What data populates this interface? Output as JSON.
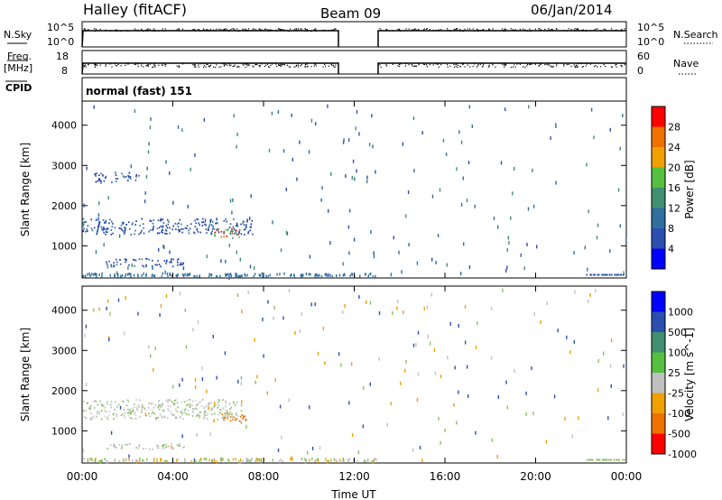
{
  "header": {
    "station": "Halley (fitACF)",
    "beam": "Beam 09",
    "date": "06/Jan/2014"
  },
  "status_panels": {
    "nsky_label": "N.Sky",
    "nsearch_label": "N.Search",
    "nsky_ticks": [
      "10^5",
      "10^0"
    ],
    "nsearch_ticks": [
      "10^5",
      "10^0"
    ],
    "freq_label_top": "Freq.",
    "freq_label_unit": "[MHz]",
    "freq_ticks": [
      "18",
      "8"
    ],
    "nave_label": "Nave",
    "nave_ticks": [
      "60",
      "0"
    ],
    "cpid_label": "CPID",
    "cpid_text": "normal (fast) 151"
  },
  "chart_data": [
    {
      "type": "scatter",
      "name": "power",
      "ylabel": "Slant Range [km]",
      "xlabel": "",
      "xlim": [
        0,
        24
      ],
      "ylim": [
        200,
        4600
      ],
      "yticks": [
        1000,
        2000,
        3000,
        4000
      ],
      "colorbar": {
        "label": "Power [dB]",
        "range": [
          0,
          32
        ],
        "ticks": [
          "4",
          "8",
          "12",
          "16",
          "20",
          "24",
          "28"
        ],
        "colors": [
          "#0000ff",
          "#2a4fb0",
          "#2f6fa0",
          "#3f8f70",
          "#55c040",
          "#f0a000",
          "#f07000",
          "#ff0000"
        ]
      },
      "features": [
        {
          "t0": 0.0,
          "t1": 7.5,
          "r0": 1300,
          "r1": 1700,
          "level": "low"
        },
        {
          "t0": 5.8,
          "t1": 7.0,
          "r0": 1200,
          "r1": 1450,
          "level": "high"
        },
        {
          "t0": 1.0,
          "t1": 4.5,
          "r0": 500,
          "r1": 700,
          "level": "low"
        },
        {
          "t0": 0.5,
          "t1": 2.5,
          "r0": 2600,
          "r1": 2850,
          "level": "low"
        }
      ]
    },
    {
      "type": "scatter",
      "name": "velocity",
      "ylabel": "Slant Range [km]",
      "xlabel": "Time UT",
      "xlim": [
        0,
        24
      ],
      "ylim": [
        200,
        4600
      ],
      "yticks": [
        1000,
        2000,
        3000,
        4000
      ],
      "xticks": [
        "00:00",
        "04:00",
        "08:00",
        "12:00",
        "16:00",
        "20:00",
        "00:00"
      ],
      "colorbar": {
        "label": "Velocity [m s^-1]",
        "ticks": [
          "1000",
          "500",
          "100",
          "25",
          "-25",
          "-100",
          "-500",
          "-1000"
        ],
        "colors": [
          "#0000ff",
          "#2a4fb0",
          "#3f8f70",
          "#55c040",
          "#c0c0c0",
          "#f0a000",
          "#f07000",
          "#ff0000"
        ]
      },
      "features": [
        {
          "t0": 6.0,
          "t1": 7.2,
          "r0": 1200,
          "r1": 1450,
          "level": "neg"
        },
        {
          "t0": 0.0,
          "t1": 7.0,
          "r0": 1300,
          "r1": 1800,
          "level": "zero"
        },
        {
          "t0": 1.0,
          "t1": 4.5,
          "r0": 550,
          "r1": 700,
          "level": "zero"
        }
      ]
    }
  ]
}
